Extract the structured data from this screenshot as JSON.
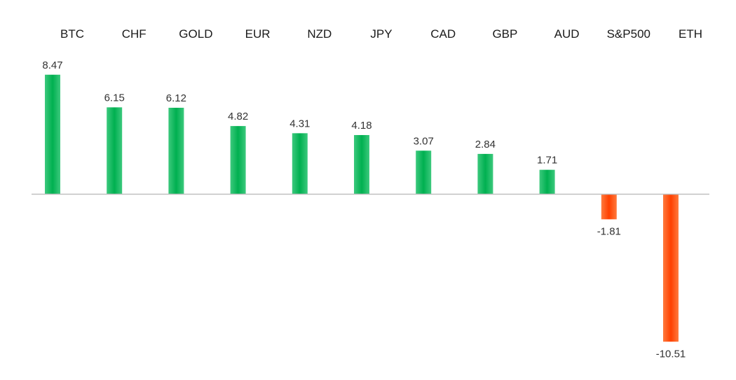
{
  "chart_data": {
    "type": "bar",
    "categories": [
      "BTC",
      "CHF",
      "GOLD",
      "EUR",
      "NZD",
      "JPY",
      "CAD",
      "GBP",
      "AUD",
      "S&P500",
      "ETH"
    ],
    "values": [
      8.47,
      6.15,
      6.12,
      4.82,
      4.31,
      4.18,
      3.07,
      2.84,
      1.71,
      -1.81,
      -10.51
    ],
    "value_labels": [
      "8.47",
      "6.15",
      "6.12",
      "4.82",
      "4.31",
      "4.18",
      "3.07",
      "2.84",
      "1.71",
      "-1.81",
      "-10.51"
    ],
    "title": "",
    "xlabel": "",
    "ylabel": "",
    "ylim": [
      -10.51,
      8.47
    ],
    "grid": false,
    "legend": "none",
    "category_axis_position": "top",
    "colors": {
      "positive": "#00b050",
      "negative": "#ff4000",
      "axis": "#bfbfbf"
    }
  }
}
